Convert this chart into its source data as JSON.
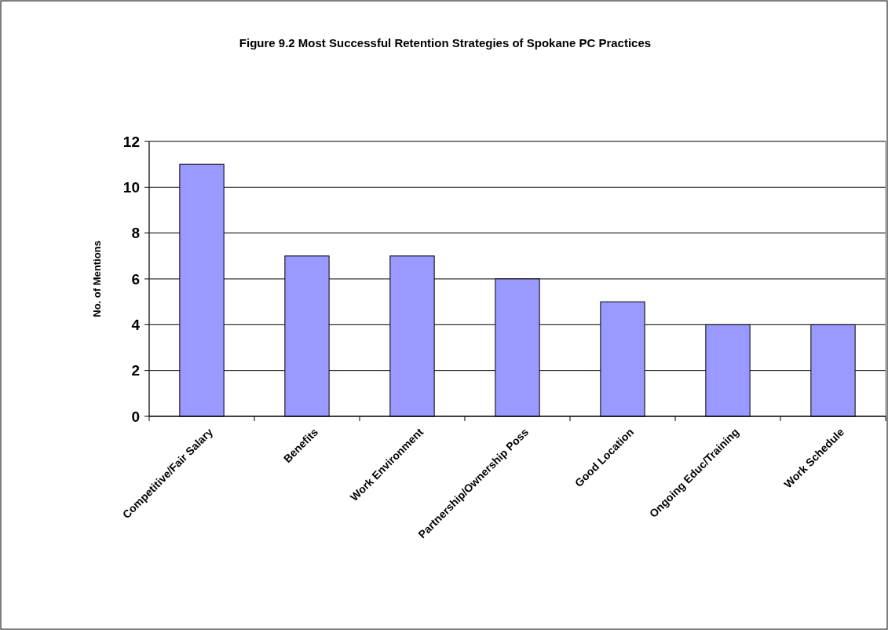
{
  "chart_data": {
    "type": "bar",
    "title": "Figure 9.2 Most Successful Retention Strategies of Spokane PC Practices",
    "ylabel": "No. of Mentions",
    "categories": [
      "Competitive/Fair Salary",
      "Benefits",
      "Work Environment",
      "Partnership/Ownership Poss",
      "Good Location",
      "Ongoing Educ/Training",
      "Work Schedule"
    ],
    "values": [
      11,
      7,
      7,
      6,
      5,
      4,
      4
    ],
    "color": "#9999ff",
    "ylim": [
      0,
      12
    ],
    "yticks": [
      0,
      2,
      4,
      6,
      8,
      10,
      12
    ],
    "grid": "y"
  }
}
